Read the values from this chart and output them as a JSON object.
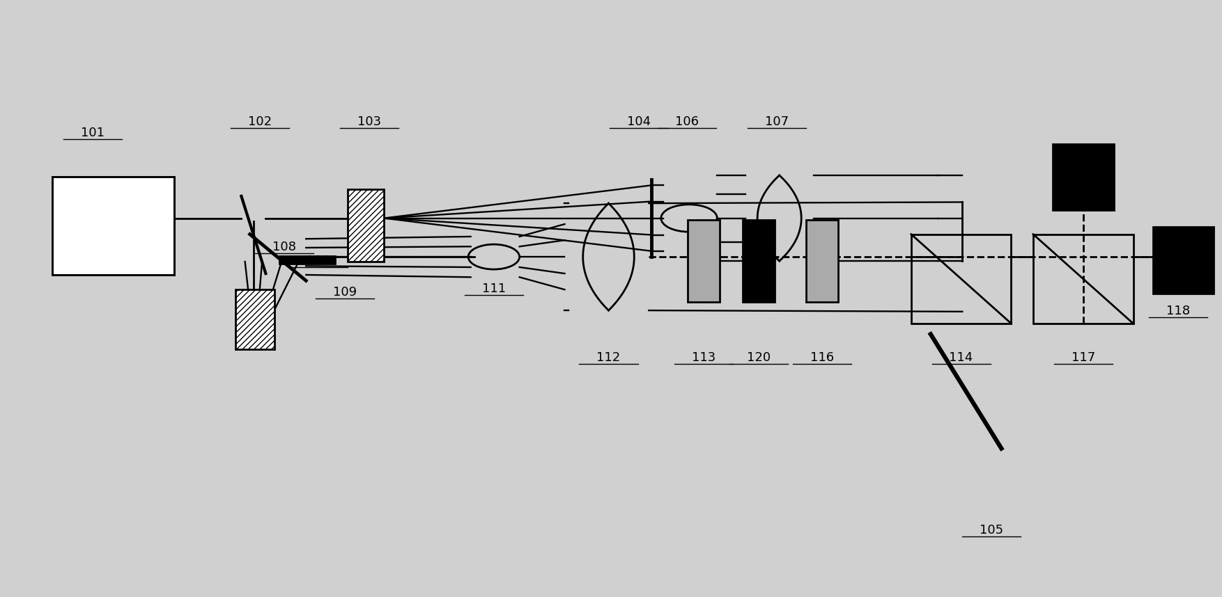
{
  "bg": "#d0d0d0",
  "lc": "black",
  "lw": 2.0,
  "fs": 13,
  "byt": 0.635,
  "byb": 0.57
}
